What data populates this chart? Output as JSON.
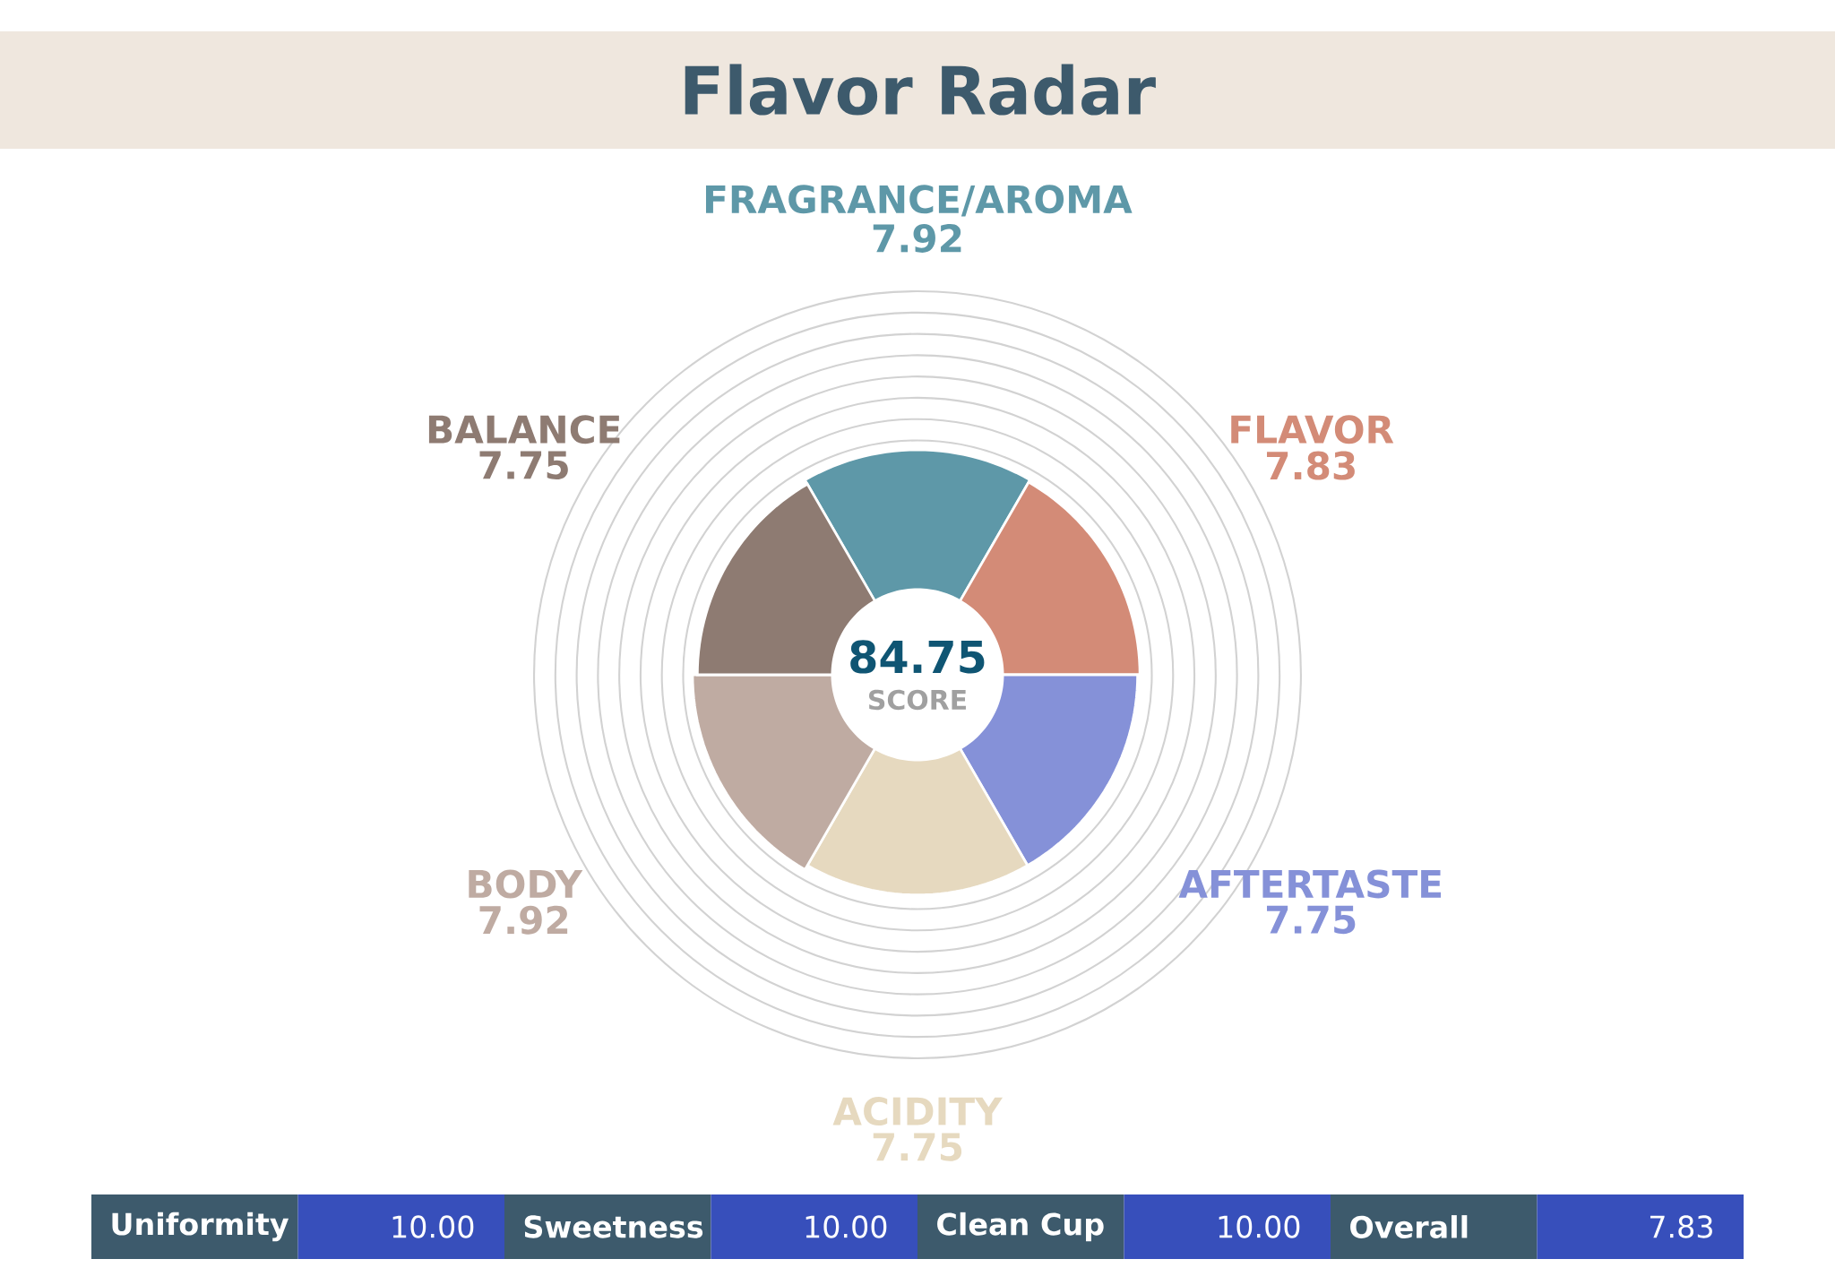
{
  "chart_data": {
    "type": "other",
    "title": "Flavor Radar",
    "categories": [
      "FRAGRANCE/AROMA",
      "FLAVOR",
      "AFTERTASTE",
      "ACIDITY",
      "BODY",
      "BALANCE"
    ],
    "values": [
      7.92,
      7.83,
      7.75,
      7.75,
      7.92,
      7.75
    ],
    "colors": [
      "#5e98a8",
      "#d38b77",
      "#8591d8",
      "#e6d9bf",
      "#bfaba2",
      "#8e7b72"
    ],
    "data_labels": true,
    "annotations": [
      "84.75",
      "SCORE",
      "Uniformity",
      "10.00",
      "Sweetness",
      "10.00",
      "Clean Cup",
      "10.00",
      "Overall",
      "7.83"
    ]
  }
}
